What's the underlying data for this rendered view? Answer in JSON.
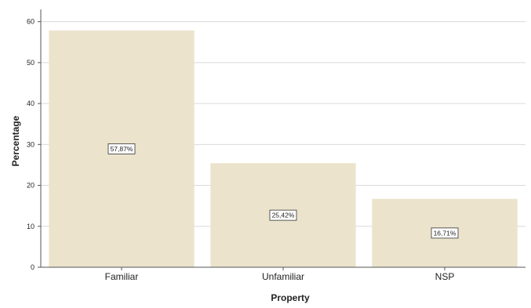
{
  "chart_data": {
    "type": "bar",
    "categories": [
      "Familiar",
      "Unfamiliar",
      "NSP"
    ],
    "values": [
      57.87,
      25.42,
      16.71
    ],
    "data_labels": [
      "57,87%",
      "25,42%",
      "16,71%"
    ],
    "xlabel": "Property",
    "ylabel": "Percentage",
    "ylim": [
      0,
      63
    ],
    "yticks": [
      0,
      10,
      20,
      30,
      40,
      50,
      60
    ],
    "grid": true,
    "colors": {
      "bar": "#ebe3cc",
      "grid": "#d9d9d9",
      "axis": "#555555"
    }
  }
}
